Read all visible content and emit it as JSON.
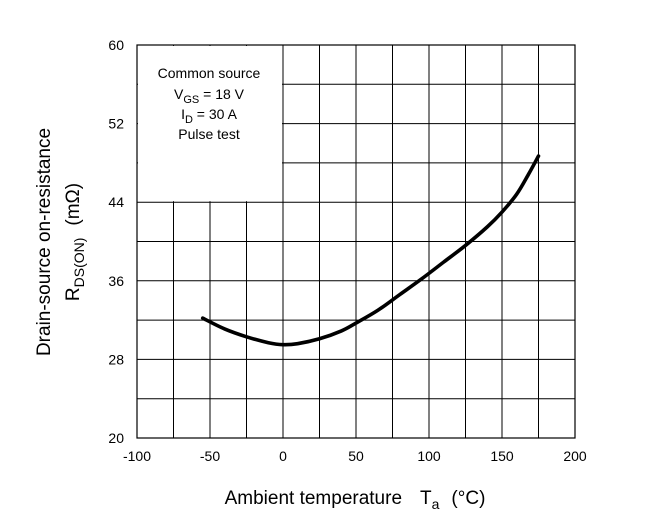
{
  "chart_data": {
    "type": "line",
    "title": "",
    "xlabel": {
      "main": "Ambient temperature",
      "symbol": "T",
      "symbol_sub": "a",
      "unit": "(°C)"
    },
    "ylabel": {
      "line1": "Drain-source on-resistance",
      "symbol": "R",
      "symbol_sub": "DS(ON)",
      "unit": "(mΩ)"
    },
    "xlim": [
      -100,
      200
    ],
    "ylim": [
      20,
      60
    ],
    "x_ticks": [
      "-100",
      "-50",
      "0",
      "50",
      "100",
      "150",
      "200"
    ],
    "x_tick_values": [
      -100,
      -50,
      0,
      50,
      100,
      150,
      200
    ],
    "y_ticks": [
      "20",
      "28",
      "36",
      "44",
      "52",
      "60"
    ],
    "y_tick_values": [
      20,
      28,
      36,
      44,
      52,
      60
    ],
    "grid": true,
    "legend_box": {
      "position": "top-left",
      "line1": "Common source",
      "line2": {
        "symbol": "V",
        "sub": "GS",
        "rest": " = 18 V"
      },
      "line3": {
        "symbol": "I",
        "sub": "D",
        "rest": " = 30 A"
      },
      "line4": "Pulse test"
    },
    "series": [
      {
        "name": "RDS(ON)",
        "color": "#000000",
        "x": [
          -55,
          -40,
          -25,
          -10,
          0,
          10,
          25,
          40,
          50,
          65,
          80,
          95,
          110,
          125,
          140,
          150,
          160,
          168,
          175
        ],
        "y": [
          32.2,
          31.1,
          30.3,
          29.7,
          29.5,
          29.6,
          30.1,
          30.9,
          31.7,
          33.0,
          34.6,
          36.2,
          37.9,
          39.6,
          41.5,
          43.0,
          44.8,
          46.8,
          48.7
        ]
      }
    ]
  }
}
